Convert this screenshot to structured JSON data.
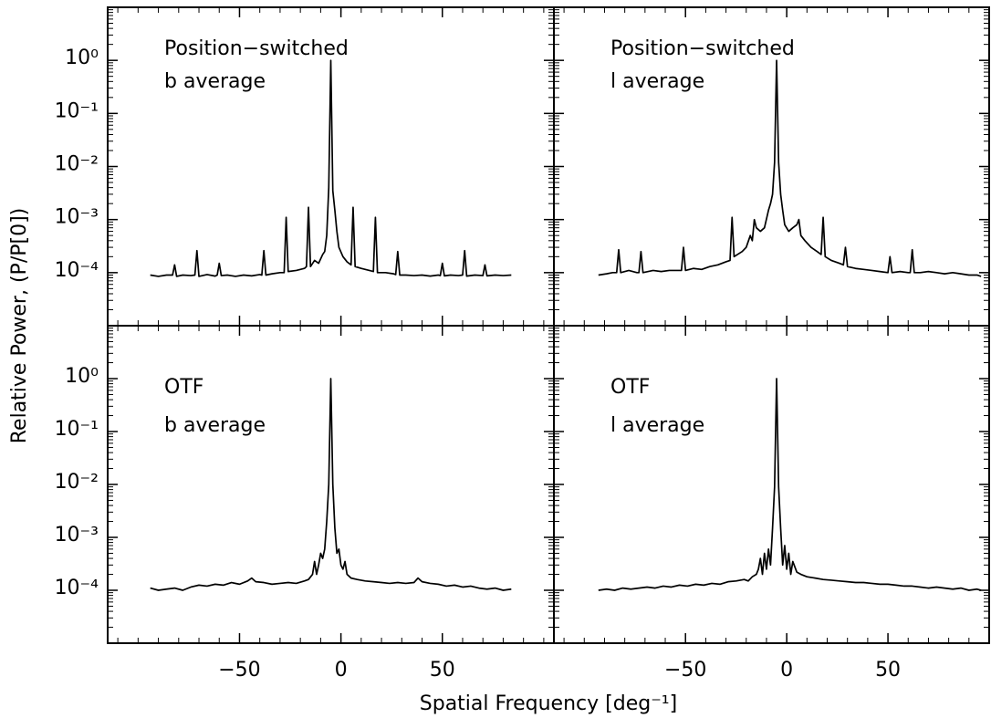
{
  "figure": {
    "xlabel": "Spatial Frequency [deg⁻¹]",
    "ylabel": "Relative Power, (P/P[0])"
  },
  "chart_data": [
    {
      "type": "line",
      "annotations": [
        "Position−switched",
        "b average"
      ],
      "color": "#000000",
      "log_y": true,
      "xlim": [
        -115,
        105
      ],
      "ylim": [
        1e-05,
        10
      ],
      "show_xticklabels": false,
      "show_yticklabels": true,
      "xticks": [
        {
          "value": -50,
          "label": "−50"
        },
        0,
        50
      ],
      "yticks": [
        {
          "value": 1,
          "label": "10⁰"
        },
        {
          "value": 0.1,
          "label": "10⁻¹"
        },
        {
          "value": 0.01,
          "label": "10⁻²"
        },
        {
          "value": 0.001,
          "label": "10⁻³"
        },
        {
          "value": 0.0001,
          "label": "10⁻⁴"
        }
      ],
      "x": [
        -94,
        -90,
        -86,
        -83,
        -82,
        -81,
        -78,
        -74,
        -72,
        -71,
        -70,
        -66,
        -62,
        -61,
        -60,
        -59,
        -56,
        -52,
        -48,
        -44,
        -40,
        -39,
        -38,
        -37,
        -34,
        -30,
        -28,
        -27,
        -26,
        -22,
        -18,
        -17,
        -16,
        -15,
        -13,
        -11,
        -9,
        -8,
        -7,
        -6,
        -5,
        -4,
        -3,
        -2,
        -1,
        1,
        3,
        5,
        6,
        7,
        10,
        14,
        16,
        17,
        18,
        22,
        26,
        27,
        28,
        29,
        32,
        36,
        40,
        44,
        48,
        49,
        50,
        51,
        54,
        58,
        60,
        61,
        62,
        66,
        70,
        71,
        72,
        76,
        80,
        84
      ],
      "values": [
        9e-05,
        8.5e-05,
        9e-05,
        9e-05,
        0.00014,
        8.5e-05,
        9e-05,
        8.8e-05,
        9e-05,
        0.00026,
        8.5e-05,
        9.2e-05,
        8.6e-05,
        9e-05,
        0.00015,
        8.8e-05,
        9e-05,
        8.5e-05,
        9e-05,
        8.7e-05,
        9.2e-05,
        9e-05,
        0.00026,
        9e-05,
        9.5e-05,
        0.0001,
        0.0001,
        0.0011,
        0.000105,
        0.00011,
        0.00012,
        0.00013,
        0.0017,
        0.00013,
        0.00017,
        0.00015,
        0.00022,
        0.00025,
        0.0005,
        0.004,
        1,
        0.0035,
        0.0015,
        0.0006,
        0.0003,
        0.0002,
        0.00016,
        0.00014,
        0.0017,
        0.00013,
        0.00012,
        0.00011,
        0.000105,
        0.0011,
        0.0001,
        0.0001,
        9.5e-05,
        9.2e-05,
        0.00025,
        9e-05,
        9e-05,
        8.8e-05,
        9e-05,
        8.6e-05,
        9e-05,
        8.8e-05,
        0.00015,
        8.7e-05,
        9e-05,
        8.8e-05,
        9e-05,
        0.00026,
        8.6e-05,
        9e-05,
        8.8e-05,
        0.00014,
        8.7e-05,
        9e-05,
        8.8e-05,
        9e-05
      ]
    },
    {
      "type": "line",
      "annotations": [
        "Position−switched",
        "l average"
      ],
      "color": "#000000",
      "log_y": true,
      "xlim": [
        -115,
        100
      ],
      "ylim": [
        1e-05,
        10
      ],
      "show_xticklabels": false,
      "show_yticklabels": false,
      "xticks": [
        {
          "value": -50,
          "label": "−50"
        },
        0,
        50
      ],
      "yticks": [
        {
          "value": 1,
          "label": "10⁰"
        },
        {
          "value": 0.1,
          "label": "10⁻¹"
        },
        {
          "value": 0.01,
          "label": "10⁻²"
        },
        {
          "value": 0.001,
          "label": "10⁻³"
        },
        {
          "value": 0.0001,
          "label": "10⁻⁴"
        }
      ],
      "x": [
        -93,
        -89,
        -86,
        -84,
        -83,
        -82,
        -78,
        -74,
        -73,
        -72,
        -71,
        -66,
        -62,
        -58,
        -52,
        -51,
        -50,
        -46,
        -42,
        -38,
        -34,
        -30,
        -28,
        -27,
        -26,
        -22,
        -20,
        -18,
        -17,
        -16,
        -15,
        -13,
        -11,
        -9,
        -8,
        -7,
        -6,
        -5,
        -4,
        -3,
        -2,
        -1,
        1,
        3,
        5,
        6,
        7,
        9,
        12,
        15,
        17,
        18,
        19,
        22,
        26,
        28,
        29,
        30,
        34,
        38,
        42,
        46,
        50,
        51,
        52,
        56,
        60,
        61,
        62,
        63,
        66,
        70,
        74,
        78,
        82,
        86,
        90,
        94,
        96
      ],
      "values": [
        9e-05,
        9.5e-05,
        0.0001,
        0.0001,
        0.00027,
        0.0001,
        0.00011,
        0.0001,
        0.0001,
        0.00025,
        0.0001,
        0.00011,
        0.000105,
        0.00011,
        0.00011,
        0.0003,
        0.00011,
        0.00012,
        0.000115,
        0.00013,
        0.00014,
        0.00016,
        0.00017,
        0.0011,
        0.0002,
        0.00025,
        0.0003,
        0.0005,
        0.0004,
        0.001,
        0.0007,
        0.0006,
        0.0007,
        0.0015,
        0.002,
        0.003,
        0.012,
        1,
        0.012,
        0.003,
        0.0015,
        0.0008,
        0.0006,
        0.0007,
        0.0008,
        0.001,
        0.0005,
        0.0004,
        0.0003,
        0.00025,
        0.00022,
        0.0011,
        0.0002,
        0.00017,
        0.00015,
        0.00014,
        0.0003,
        0.00013,
        0.00012,
        0.000115,
        0.00011,
        0.000105,
        0.0001,
        0.0002,
        0.0001,
        0.000105,
        0.0001,
        0.0001,
        0.00027,
        0.0001,
        0.0001,
        0.000105,
        0.0001,
        9.5e-05,
        0.0001,
        9.5e-05,
        9e-05,
        9e-05,
        8.5e-05
      ]
    },
    {
      "type": "line",
      "annotations": [
        "OTF",
        "b average"
      ],
      "color": "#000000",
      "log_y": true,
      "xlim": [
        -115,
        105
      ],
      "ylim": [
        1e-05,
        10
      ],
      "show_xticklabels": true,
      "show_yticklabels": true,
      "xticks": [
        {
          "value": -50,
          "label": "−50"
        },
        0,
        50
      ],
      "yticks": [
        {
          "value": 1,
          "label": "10⁰"
        },
        {
          "value": 0.1,
          "label": "10⁻¹"
        },
        {
          "value": 0.01,
          "label": "10⁻²"
        },
        {
          "value": 0.001,
          "label": "10⁻³"
        },
        {
          "value": 0.0001,
          "label": "10⁻⁴"
        }
      ],
      "x": [
        -94,
        -90,
        -86,
        -82,
        -78,
        -74,
        -70,
        -66,
        -62,
        -58,
        -54,
        -50,
        -46,
        -44,
        -42,
        -38,
        -34,
        -30,
        -26,
        -22,
        -18,
        -16,
        -14,
        -13,
        -12,
        -11,
        -10,
        -9,
        -8,
        -7,
        -6,
        -5,
        -4,
        -3,
        -2,
        -1,
        0,
        1,
        2,
        3,
        5,
        8,
        12,
        16,
        20,
        24,
        28,
        32,
        36,
        38,
        40,
        44,
        48,
        52,
        56,
        60,
        64,
        68,
        72,
        76,
        80,
        84
      ],
      "values": [
        0.00011,
        0.0001,
        0.000105,
        0.00011,
        0.0001,
        0.000115,
        0.000125,
        0.00012,
        0.00013,
        0.000125,
        0.00014,
        0.00013,
        0.00015,
        0.00017,
        0.000145,
        0.00014,
        0.00013,
        0.000135,
        0.00014,
        0.000135,
        0.00015,
        0.00016,
        0.0002,
        0.00035,
        0.0002,
        0.0003,
        0.0005,
        0.0004,
        0.0006,
        0.002,
        0.01,
        1,
        0.01,
        0.0015,
        0.0005,
        0.0006,
        0.0003,
        0.00025,
        0.00035,
        0.0002,
        0.00017,
        0.00016,
        0.00015,
        0.000145,
        0.00014,
        0.000135,
        0.00014,
        0.000135,
        0.00014,
        0.00017,
        0.000145,
        0.000135,
        0.00013,
        0.00012,
        0.000125,
        0.000115,
        0.00012,
        0.00011,
        0.000105,
        0.00011,
        0.0001,
        0.000105
      ]
    },
    {
      "type": "line",
      "annotations": [
        "OTF",
        "l average"
      ],
      "color": "#000000",
      "log_y": true,
      "xlim": [
        -115,
        100
      ],
      "ylim": [
        1e-05,
        10
      ],
      "show_xticklabels": true,
      "show_yticklabels": false,
      "xticks": [
        {
          "value": -50,
          "label": "−50"
        },
        0,
        50
      ],
      "yticks": [
        {
          "value": 1,
          "label": "10⁰"
        },
        {
          "value": 0.1,
          "label": "10⁻¹"
        },
        {
          "value": 0.01,
          "label": "10⁻²"
        },
        {
          "value": 0.001,
          "label": "10⁻³"
        },
        {
          "value": 0.0001,
          "label": "10⁻⁴"
        }
      ],
      "x": [
        -93,
        -89,
        -85,
        -81,
        -77,
        -73,
        -69,
        -65,
        -61,
        -57,
        -53,
        -49,
        -45,
        -41,
        -37,
        -33,
        -29,
        -25,
        -21,
        -19,
        -17,
        -15,
        -14,
        -13,
        -12,
        -11,
        -10,
        -9,
        -8,
        -7,
        -6,
        -5,
        -4,
        -3,
        -2,
        -1,
        0,
        1,
        2,
        3,
        5,
        7,
        10,
        14,
        18,
        22,
        26,
        30,
        34,
        38,
        42,
        46,
        50,
        54,
        58,
        62,
        66,
        70,
        74,
        78,
        82,
        86,
        90,
        94,
        96
      ],
      "values": [
        0.0001,
        0.000105,
        0.0001,
        0.00011,
        0.000105,
        0.00011,
        0.000115,
        0.00011,
        0.00012,
        0.000115,
        0.000125,
        0.00012,
        0.00013,
        0.000125,
        0.000135,
        0.00013,
        0.000145,
        0.00015,
        0.00016,
        0.00015,
        0.00018,
        0.0002,
        0.00025,
        0.0004,
        0.0002,
        0.0005,
        0.00025,
        0.0006,
        0.0003,
        0.0015,
        0.009,
        1,
        0.009,
        0.0015,
        0.0003,
        0.0007,
        0.00025,
        0.0005,
        0.0002,
        0.00035,
        0.00022,
        0.0002,
        0.00018,
        0.00017,
        0.00016,
        0.000155,
        0.00015,
        0.000145,
        0.00014,
        0.00014,
        0.000135,
        0.00013,
        0.00013,
        0.000125,
        0.00012,
        0.00012,
        0.000115,
        0.00011,
        0.000115,
        0.00011,
        0.000105,
        0.00011,
        0.0001,
        0.000105,
        0.0001
      ]
    }
  ]
}
